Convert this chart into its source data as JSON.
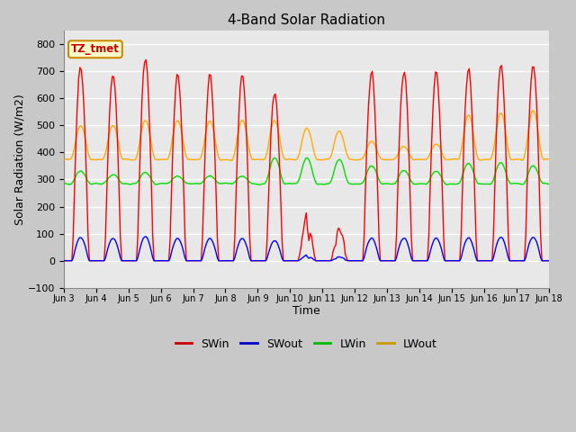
{
  "title": "4-Band Solar Radiation",
  "xlabel": "Time",
  "ylabel": "Solar Radiation (W/m2)",
  "ylim": [
    -100,
    850
  ],
  "label_tag": "TZ_tmet",
  "colors": {
    "SWin": "#ff0000",
    "SWout": "#0000ff",
    "LWin": "#00dd00",
    "LWout": "#ffaa00"
  },
  "legend_colors": {
    "SWin": "#cc0000",
    "SWout": "#0000cc",
    "LWin": "#00bb00",
    "LWout": "#cc9900"
  },
  "fig_bg": "#c8c8c8",
  "plot_bg": "#e8e8e8",
  "grid_color": "#ffffff"
}
